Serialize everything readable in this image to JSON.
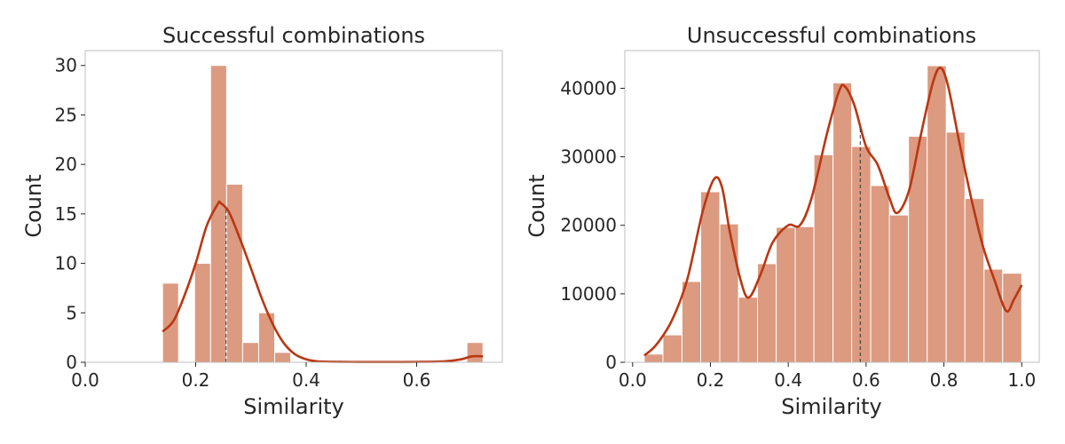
{
  "colors": {
    "bar": "#dc9a80",
    "kde": "#b93712",
    "median_line": "#333333"
  },
  "chart_data": [
    {
      "type": "bar",
      "title": "Successful combinations",
      "xlabel": "Similarity",
      "ylabel": "Count",
      "xlim": [
        0.0,
        0.755
      ],
      "ylim": [
        0,
        31.5
      ],
      "xticks": [
        0.0,
        0.2,
        0.4,
        0.6
      ],
      "xtick_labels": [
        "0.0",
        "0.2",
        "0.4",
        "0.6"
      ],
      "yticks": [
        0,
        5,
        10,
        15,
        20,
        25,
        30
      ],
      "ytick_labels": [
        "0",
        "5",
        "10",
        "15",
        "20",
        "25",
        "30"
      ],
      "bins": [
        {
          "x0": 0.14,
          "x1": 0.169,
          "count": 8
        },
        {
          "x0": 0.169,
          "x1": 0.198,
          "count": 0
        },
        {
          "x0": 0.198,
          "x1": 0.227,
          "count": 10
        },
        {
          "x0": 0.227,
          "x1": 0.256,
          "count": 30
        },
        {
          "x0": 0.256,
          "x1": 0.285,
          "count": 18
        },
        {
          "x0": 0.285,
          "x1": 0.314,
          "count": 2
        },
        {
          "x0": 0.314,
          "x1": 0.343,
          "count": 5
        },
        {
          "x0": 0.343,
          "x1": 0.372,
          "count": 1
        },
        {
          "x0": 0.691,
          "x1": 0.72,
          "count": 2
        }
      ],
      "kde": {
        "x": [
          0.14,
          0.16,
          0.18,
          0.2,
          0.22,
          0.24,
          0.245,
          0.26,
          0.28,
          0.3,
          0.32,
          0.34,
          0.36,
          0.38,
          0.4,
          0.42,
          0.45,
          0.5,
          0.55,
          0.6,
          0.65,
          0.68,
          0.7,
          0.72
        ],
        "y": [
          3.1,
          4.2,
          6.8,
          10.0,
          13.8,
          16.0,
          16.1,
          15.2,
          12.5,
          9.5,
          6.4,
          3.8,
          1.9,
          0.8,
          0.3,
          0.1,
          0.05,
          0.03,
          0.03,
          0.04,
          0.1,
          0.3,
          0.6,
          0.6
        ]
      },
      "median": 0.255,
      "grid": false,
      "legend": "none"
    },
    {
      "type": "bar",
      "title": "Unsuccessful combinations",
      "xlabel": "Similarity",
      "ylabel": "Count",
      "xlim": [
        -0.02,
        1.045
      ],
      "ylim": [
        0,
        45500
      ],
      "xticks": [
        0.0,
        0.2,
        0.4,
        0.6,
        0.8,
        1.0
      ],
      "xtick_labels": [
        "0.0",
        "0.2",
        "0.4",
        "0.6",
        "0.8",
        "1.0"
      ],
      "yticks": [
        0,
        10000,
        20000,
        30000,
        40000
      ],
      "ytick_labels": [
        "0",
        "10000",
        "20000",
        "30000",
        "40000"
      ],
      "bins": [
        {
          "x0": 0.03,
          "x1": 0.078,
          "count": 1200
        },
        {
          "x0": 0.078,
          "x1": 0.127,
          "count": 4000
        },
        {
          "x0": 0.127,
          "x1": 0.175,
          "count": 11800
        },
        {
          "x0": 0.175,
          "x1": 0.224,
          "count": 24900
        },
        {
          "x0": 0.224,
          "x1": 0.272,
          "count": 20200
        },
        {
          "x0": 0.272,
          "x1": 0.321,
          "count": 9500
        },
        {
          "x0": 0.321,
          "x1": 0.369,
          "count": 14400
        },
        {
          "x0": 0.369,
          "x1": 0.418,
          "count": 19700
        },
        {
          "x0": 0.418,
          "x1": 0.466,
          "count": 19800
        },
        {
          "x0": 0.466,
          "x1": 0.515,
          "count": 30300
        },
        {
          "x0": 0.515,
          "x1": 0.563,
          "count": 40800
        },
        {
          "x0": 0.563,
          "x1": 0.612,
          "count": 31500
        },
        {
          "x0": 0.612,
          "x1": 0.66,
          "count": 25800
        },
        {
          "x0": 0.66,
          "x1": 0.709,
          "count": 21500
        },
        {
          "x0": 0.709,
          "x1": 0.757,
          "count": 33000
        },
        {
          "x0": 0.757,
          "x1": 0.806,
          "count": 43300
        },
        {
          "x0": 0.806,
          "x1": 0.854,
          "count": 33600
        },
        {
          "x0": 0.854,
          "x1": 0.903,
          "count": 23900
        },
        {
          "x0": 0.903,
          "x1": 0.951,
          "count": 13600
        },
        {
          "x0": 0.951,
          "x1": 1.0,
          "count": 13000
        }
      ],
      "kde": {
        "x": [
          0.03,
          0.06,
          0.1,
          0.14,
          0.18,
          0.21,
          0.23,
          0.25,
          0.28,
          0.3,
          0.33,
          0.36,
          0.4,
          0.43,
          0.46,
          0.5,
          0.53,
          0.545,
          0.57,
          0.6,
          0.63,
          0.66,
          0.68,
          0.71,
          0.74,
          0.77,
          0.79,
          0.81,
          0.84,
          0.87,
          0.9,
          0.93,
          0.96,
          0.98,
          1.0
        ],
        "y": [
          1000,
          2500,
          6000,
          12000,
          22000,
          26800,
          25500,
          19000,
          11500,
          9500,
          13000,
          17500,
          20000,
          20000,
          24000,
          33500,
          39500,
          40300,
          37500,
          31500,
          28800,
          24000,
          21800,
          25000,
          33000,
          40500,
          43000,
          40500,
          32000,
          24000,
          17000,
          12000,
          7500,
          9200,
          11300
        ]
      },
      "median": 0.585,
      "grid": false,
      "legend": "none"
    }
  ]
}
